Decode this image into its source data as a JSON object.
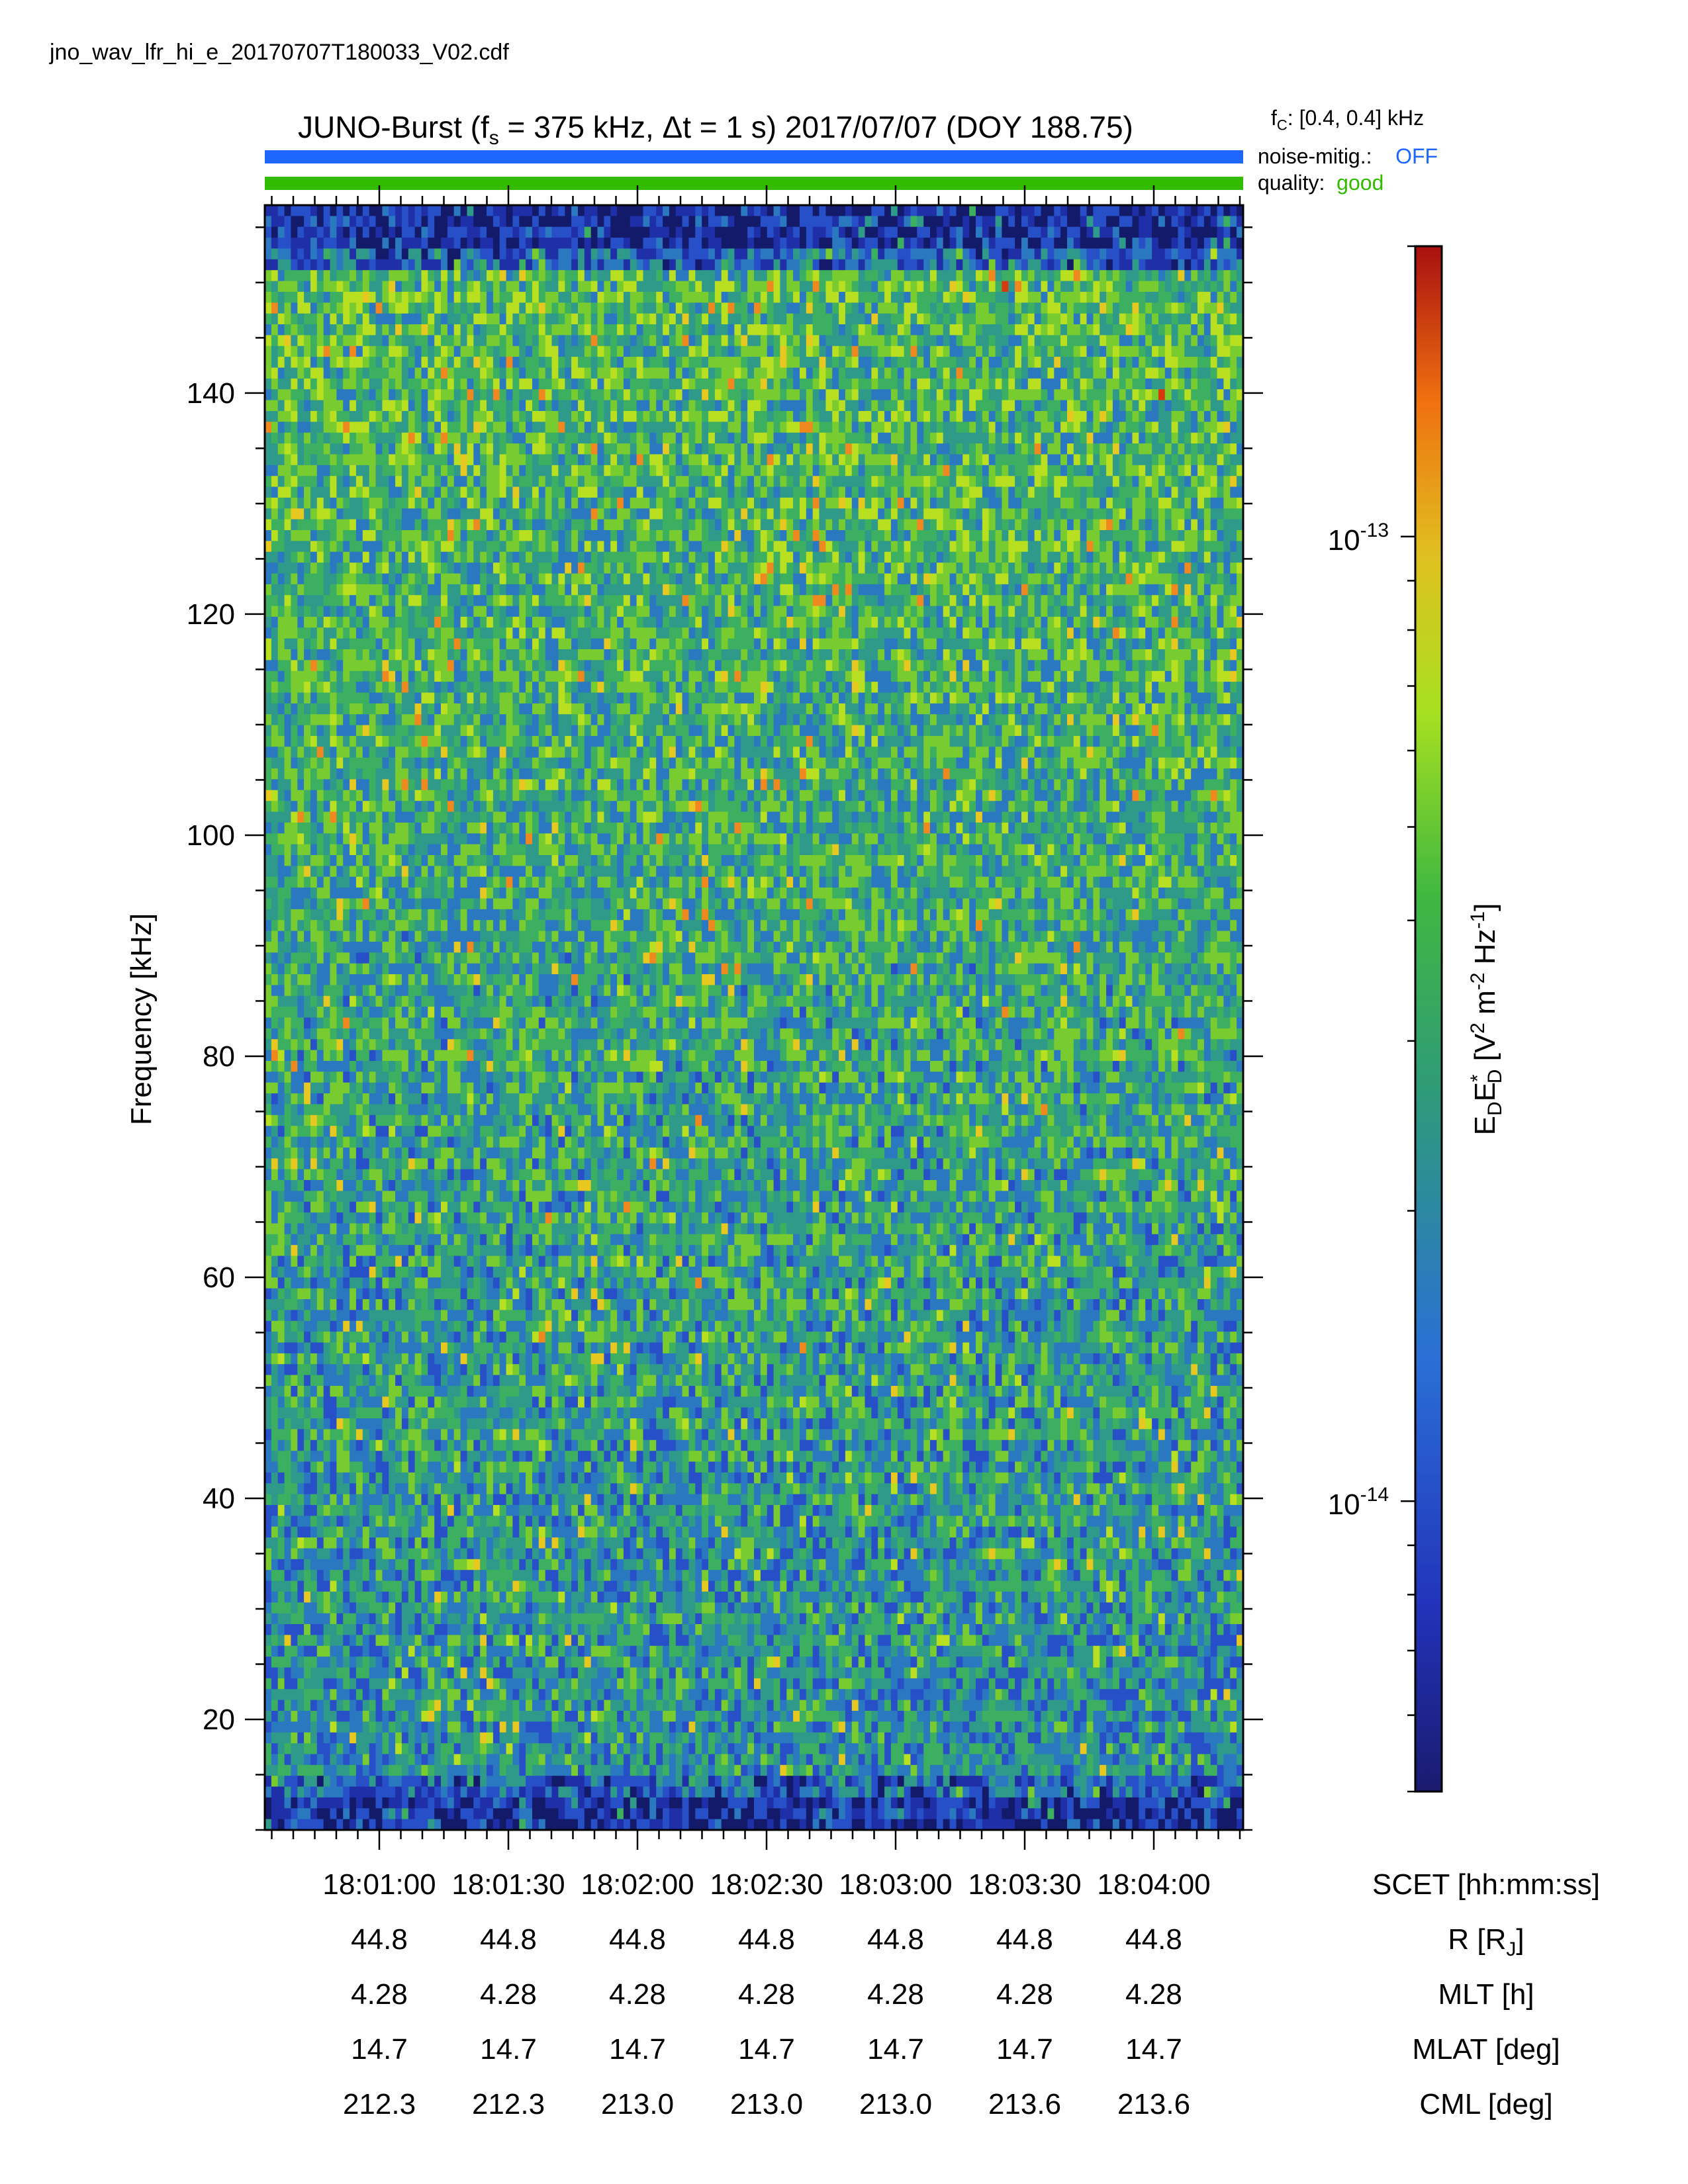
{
  "header": {
    "filename": "jno_wav_lfr_hi_e_20170707T180033_V02.cdf",
    "title_prefix": "JUNO-Burst (f",
    "title_sub": "s",
    "title_suffix": " = 375 kHz, Δt = 1 s)  2017/07/07 (DOY 188.75)",
    "fc_label": "f",
    "fc_sub": "C",
    "fc_value": ": [0.4, 0.4] kHz",
    "noise_label": "noise-mitig.:",
    "noise_value": "OFF",
    "quality_label": "quality:",
    "quality_value": "good"
  },
  "colors": {
    "noise_bar": "#1f66ff",
    "quality_bar": "#33bb00"
  },
  "chart_data": {
    "type": "heatmap",
    "ylabel": "Frequency [kHz]",
    "ylim": [
      10,
      157
    ],
    "yticks": [
      20,
      40,
      60,
      80,
      100,
      120,
      140
    ],
    "xlabel": "SCET [hh:mm:ss]",
    "xticks": [
      "18:01:00",
      "18:01:30",
      "18:02:00",
      "18:02:30",
      "18:03:00",
      "18:03:30",
      "18:04:00"
    ],
    "colorbar": {
      "label": "E_D E*_D [V² m⁻² Hz⁻¹]",
      "scale": "log",
      "ticks": [
        "10^-13",
        "10^-14"
      ],
      "range": [
        5e-15,
        2e-13
      ]
    },
    "ephemeris": [
      {
        "label": "R [R_J]",
        "values": [
          "44.8",
          "44.8",
          "44.8",
          "44.8",
          "44.8",
          "44.8",
          "44.8"
        ]
      },
      {
        "label": "MLT [h]",
        "values": [
          "4.28",
          "4.28",
          "4.28",
          "4.28",
          "4.28",
          "4.28",
          "4.28"
        ]
      },
      {
        "label": "MLAT [deg]",
        "values": [
          "14.7",
          "14.7",
          "14.7",
          "14.7",
          "14.7",
          "14.7",
          "14.7"
        ]
      },
      {
        "label": "CML [deg]",
        "values": [
          "212.3",
          "212.3",
          "213.0",
          "213.0",
          "213.0",
          "213.6",
          "213.6"
        ]
      }
    ]
  }
}
